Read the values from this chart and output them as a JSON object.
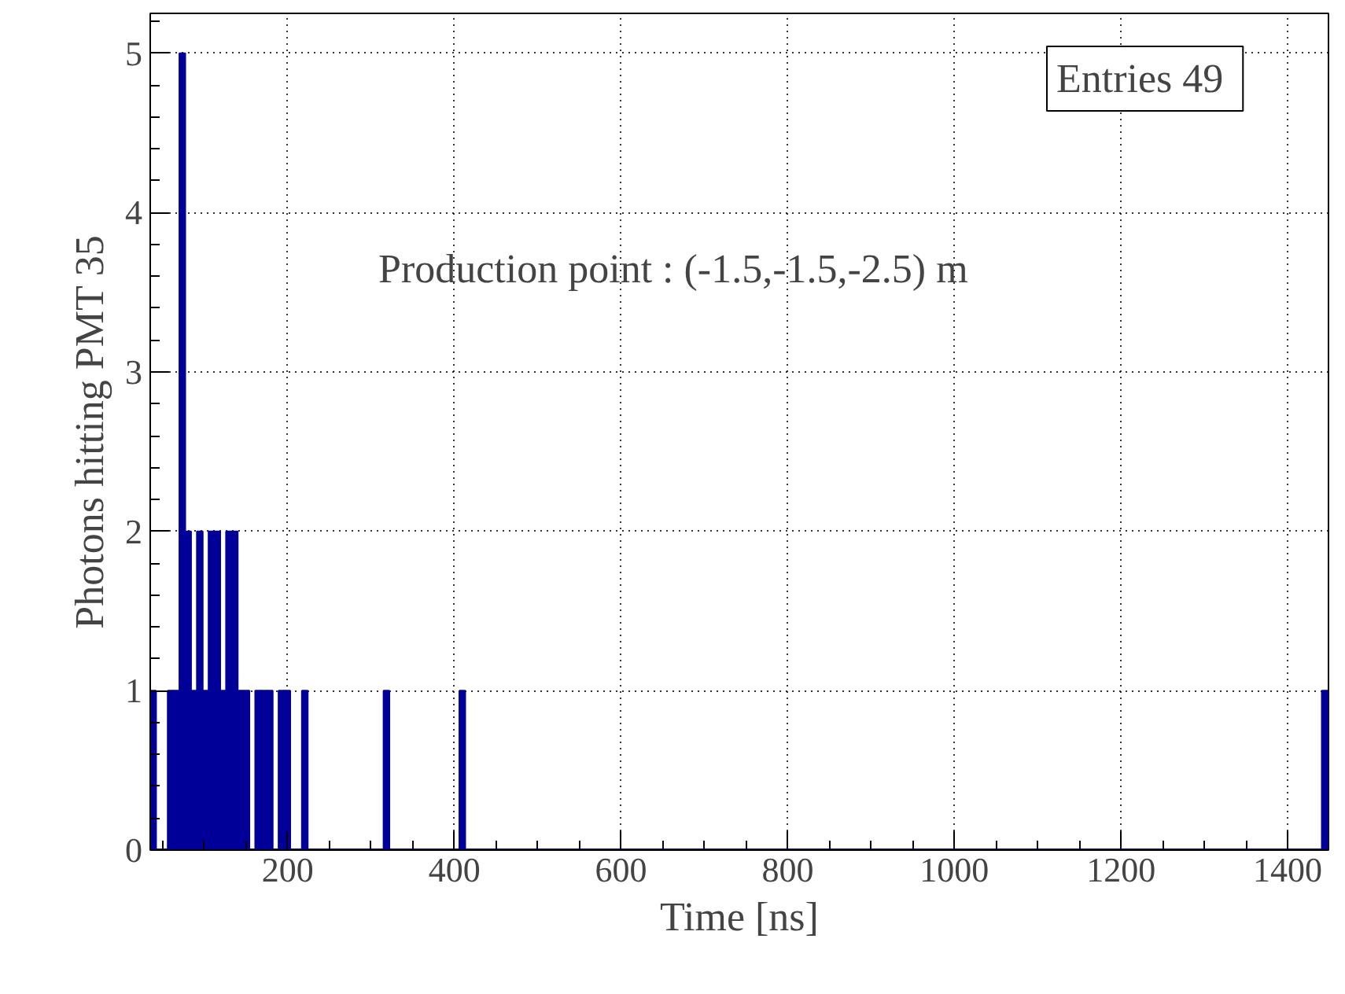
{
  "chart_data": {
    "type": "histogram",
    "xlabel": "Time [ns]",
    "ylabel": "Photons hitting PMT 35",
    "annotations": [
      "Entries  49",
      "Production point : (-1.5,-1.5,-2.5) m"
    ],
    "bins": [
      35,
      42,
      49,
      56,
      63,
      70,
      77,
      84,
      91,
      98,
      105,
      112,
      119,
      126,
      133,
      140,
      147,
      154,
      161,
      168,
      175,
      182,
      189,
      196,
      203,
      210,
      217,
      224,
      315,
      322,
      406,
      413,
      1441,
      1448
    ],
    "values": [
      1,
      0,
      0,
      1,
      1,
      5,
      2,
      1,
      2,
      1,
      2,
      2,
      1,
      2,
      2,
      1,
      1,
      0,
      1,
      1,
      1,
      0,
      1,
      1,
      0,
      0,
      1,
      0,
      1,
      0,
      1,
      0,
      1
    ],
    "color": "#000099",
    "xlim": [
      35,
      1449
    ],
    "ylim": [
      0,
      5.25
    ],
    "xticks": [
      200,
      400,
      600,
      800,
      1000,
      1200,
      1400
    ],
    "yticks": [
      0,
      1,
      2,
      3,
      4,
      5
    ],
    "grid": true
  }
}
